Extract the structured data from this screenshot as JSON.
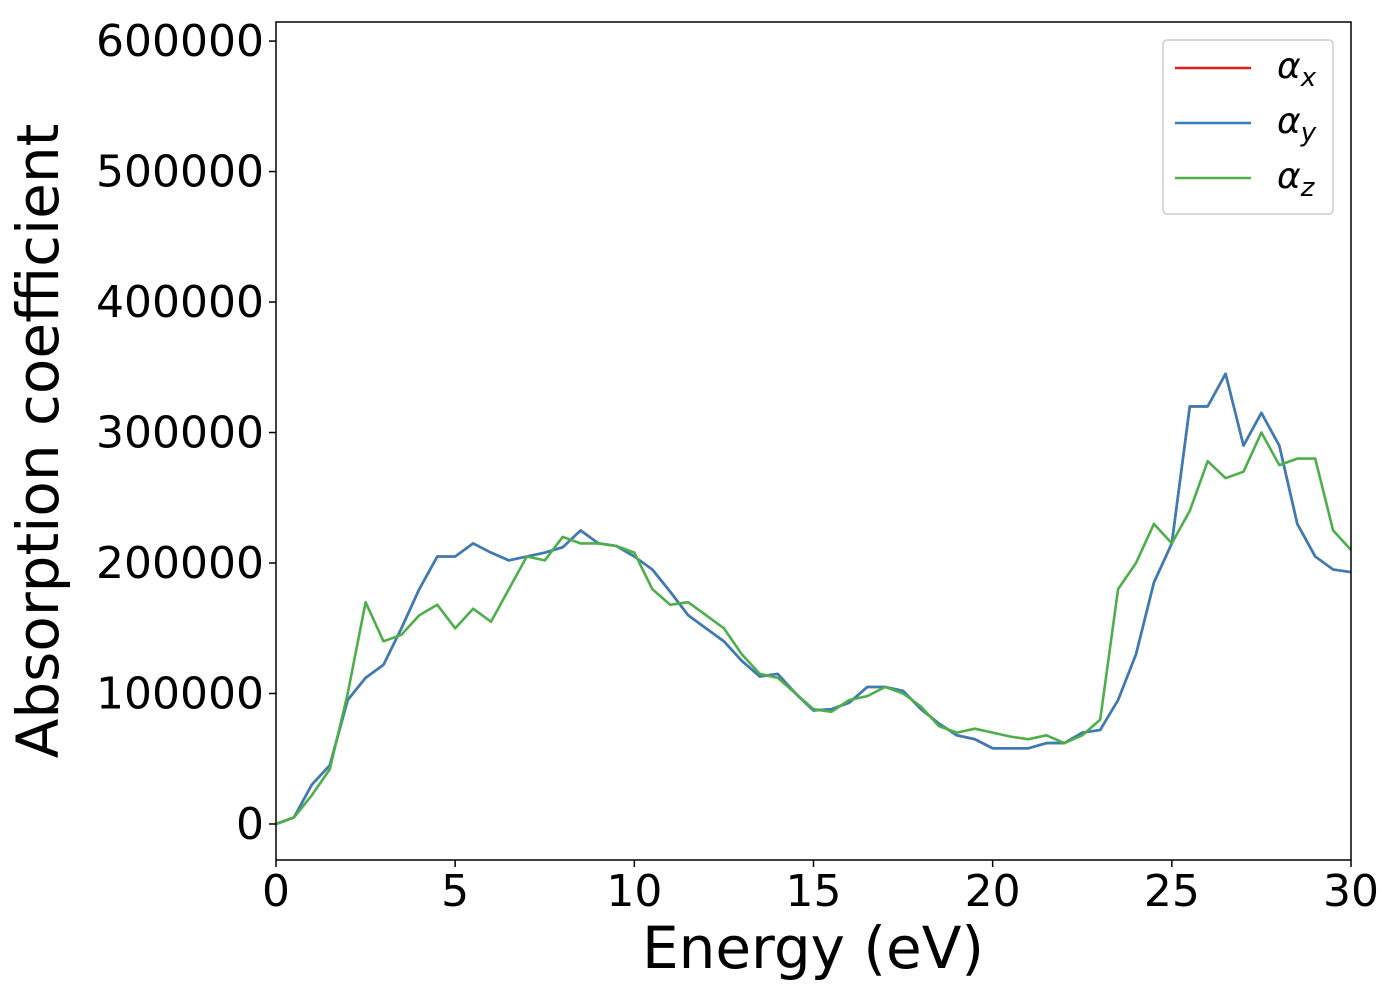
{
  "chart_data": {
    "type": "line",
    "xlabel": "Energy (eV)",
    "ylabel": "Absorption coefficient",
    "x": [
      0,
      0.5,
      1,
      1.5,
      2,
      2.5,
      3,
      3.5,
      4,
      4.5,
      5,
      5.5,
      6,
      6.5,
      7,
      7.5,
      8,
      8.5,
      9,
      9.5,
      10,
      10.5,
      11,
      11.5,
      12,
      12.5,
      13,
      13.5,
      14,
      14.5,
      15,
      15.5,
      16,
      16.5,
      17,
      17.5,
      18,
      18.5,
      19,
      19.5,
      20,
      20.5,
      21,
      21.5,
      22,
      22.5,
      23,
      23.5,
      24,
      24.5,
      25,
      25.5,
      26,
      26.5,
      27,
      27.5,
      28,
      28.5,
      29,
      29.5,
      30
    ],
    "series": [
      {
        "name": "αx",
        "color": "#e41a1c",
        "values": [
          0,
          5000,
          30000,
          45000,
          95000,
          112000,
          122000,
          150000,
          180000,
          205000,
          205000,
          215000,
          208000,
          202000,
          205000,
          208000,
          212000,
          225000,
          215000,
          213000,
          205000,
          195000,
          178000,
          160000,
          150000,
          140000,
          125000,
          113000,
          115000,
          100000,
          87000,
          88000,
          93000,
          105000,
          105000,
          102000,
          88000,
          77000,
          68000,
          65000,
          58000,
          58000,
          58000,
          62000,
          62000,
          70000,
          72000,
          95000,
          130000,
          185000,
          215000,
          320000,
          320000,
          345000,
          290000,
          315000,
          290000,
          230000,
          205000,
          195000,
          193000
        ]
      },
      {
        "name": "αy",
        "color": "#377eb8",
        "values": [
          0,
          5000,
          30000,
          45000,
          95000,
          112000,
          122000,
          150000,
          180000,
          205000,
          205000,
          215000,
          208000,
          202000,
          205000,
          208000,
          212000,
          225000,
          215000,
          213000,
          205000,
          195000,
          178000,
          160000,
          150000,
          140000,
          125000,
          113000,
          115000,
          100000,
          87000,
          88000,
          93000,
          105000,
          105000,
          102000,
          88000,
          77000,
          68000,
          65000,
          58000,
          58000,
          58000,
          62000,
          62000,
          70000,
          72000,
          95000,
          130000,
          185000,
          215000,
          320000,
          320000,
          345000,
          290000,
          315000,
          290000,
          230000,
          205000,
          195000,
          193000
        ]
      },
      {
        "name": "αz",
        "color": "#4daf4a",
        "values": [
          0,
          5000,
          22000,
          42000,
          100000,
          170000,
          140000,
          145000,
          160000,
          168000,
          150000,
          165000,
          155000,
          180000,
          205000,
          202000,
          220000,
          215000,
          215000,
          213000,
          208000,
          180000,
          168000,
          170000,
          160000,
          150000,
          130000,
          115000,
          112000,
          100000,
          88000,
          86000,
          95000,
          98000,
          105000,
          100000,
          90000,
          75000,
          70000,
          73000,
          70000,
          67000,
          65000,
          68000,
          62000,
          68000,
          80000,
          180000,
          200000,
          230000,
          215000,
          240000,
          278000,
          265000,
          270000,
          300000,
          275000,
          280000,
          280000,
          225000,
          210000
        ]
      }
    ],
    "xlim": [
      0,
      30
    ],
    "xticks": [
      0,
      5,
      10,
      15,
      20,
      25,
      30
    ],
    "ylim": [
      -27600,
      614600
    ],
    "yticks": [
      0,
      100000,
      200000,
      300000,
      400000,
      500000,
      600000
    ],
    "legend": "upper right"
  }
}
